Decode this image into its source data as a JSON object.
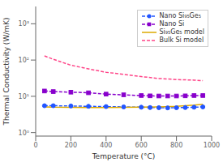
{
  "chart_data": {
    "type": "line",
    "xlabel": "Temperature (°C)",
    "ylabel": "Thermal Conductivity (W/mK)",
    "xlim": [
      0,
      1000
    ],
    "ylim": [
      0.8,
      3000
    ],
    "xticks": [
      0,
      200,
      400,
      600,
      800,
      1000
    ],
    "yticks": [
      {
        "value": 1,
        "label": "10⁰"
      },
      {
        "value": 10,
        "label": "10¹"
      },
      {
        "value": 100,
        "label": "10²"
      },
      {
        "value": 1000,
        "label": "10³"
      }
    ],
    "log": "y",
    "grid": false,
    "legend": "upper right",
    "series": [
      {
        "name": "Nano Si₉₅Ge₅",
        "color": "#2255ff",
        "line_style": "dashed",
        "marker": "circle",
        "x": [
          50,
          100,
          200,
          300,
          400,
          500,
          600,
          650,
          700,
          750,
          800,
          850,
          900,
          950
        ],
        "values": [
          5.5,
          5.5,
          5.4,
          5.3,
          5.2,
          5.1,
          5.0,
          4.9,
          4.85,
          4.8,
          4.85,
          4.9,
          5.0,
          5.1
        ]
      },
      {
        "name": "Nano Si",
        "color": "#8800cc",
        "line_style": "dashed",
        "marker": "square",
        "x": [
          50,
          100,
          200,
          300,
          400,
          500,
          600,
          650,
          700,
          750,
          800,
          850,
          900,
          950
        ],
        "values": [
          14.0,
          13.5,
          13.0,
          12.5,
          11.5,
          11.0,
          10.5,
          10.3,
          10.2,
          10.2,
          10.2,
          10.3,
          10.5,
          10.5
        ]
      },
      {
        "name": "Si₉₅Ge₅ model",
        "color": "#ddaa00",
        "line_style": "solid",
        "x": [
          50,
          100,
          200,
          300,
          400,
          500,
          600,
          700,
          800,
          900,
          950
        ],
        "values": [
          5.1,
          5.0,
          4.95,
          4.9,
          4.9,
          4.95,
          5.0,
          5.1,
          5.3,
          5.7,
          6.0
        ]
      },
      {
        "name": "Bulk Si model",
        "color": "#ff4488",
        "line_style": "dashed",
        "x": [
          50,
          100,
          200,
          300,
          400,
          500,
          600,
          700,
          800,
          900,
          950
        ],
        "values": [
          130,
          105,
          72,
          57,
          46,
          40,
          35,
          31,
          29,
          28,
          27
        ]
      }
    ]
  }
}
